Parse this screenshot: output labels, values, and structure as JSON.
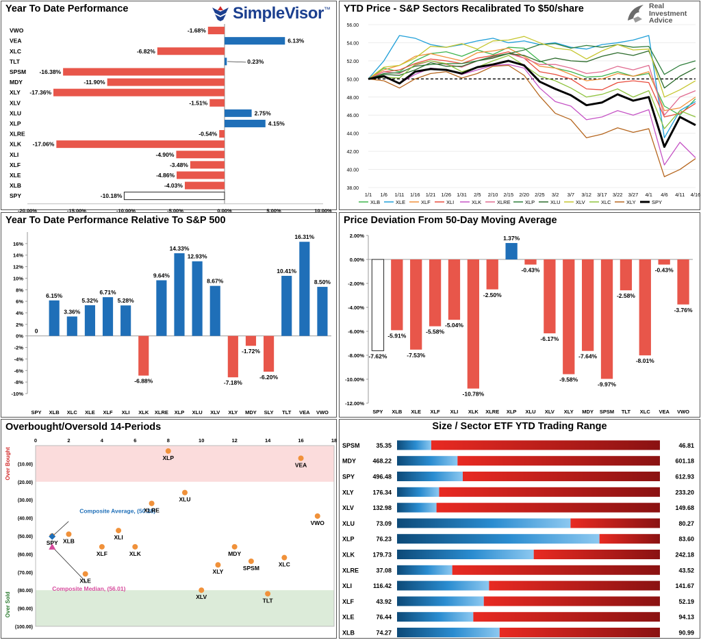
{
  "colors": {
    "red": "#e8564a",
    "blue": "#1f6fb8",
    "orange": "#f0913a",
    "pinkDot": "#d64a9c",
    "composite": "#1f6fb8",
    "overbought_band": "#fbdcdc",
    "oversold_band": "#dcebd9"
  },
  "branding": {
    "simplevisor": "SimpleVisor",
    "simplevisor_tm": "™",
    "ria_line1": "Real",
    "ria_line2": "Investment",
    "ria_line3": "Advice"
  },
  "panels": {
    "ytd": {
      "title": "Year To Date Performance",
      "chart_data": {
        "type": "bar",
        "orientation": "horizontal",
        "categories": [
          "VWO",
          "VEA",
          "XLC",
          "TLT",
          "SPSM",
          "MDY",
          "XLY",
          "XLV",
          "XLU",
          "XLP",
          "XLRE",
          "XLK",
          "XLI",
          "XLF",
          "XLE",
          "XLB",
          "SPY"
        ],
        "values": [
          -1.68,
          6.13,
          -6.82,
          0.23,
          -16.38,
          -11.9,
          -17.36,
          -1.51,
          2.75,
          4.15,
          -0.54,
          -17.06,
          -4.9,
          -3.48,
          -4.86,
          -4.03,
          -10.18
        ],
        "labels": [
          "-1.68%",
          "6.13%",
          "-6.82%",
          "0.23%",
          "-16.38%",
          "-11.90%",
          "-17.36%",
          "-1.51%",
          "2.75%",
          "4.15%",
          "-0.54%",
          "-17.06%",
          "-4.90%",
          "-3.48%",
          "-4.86%",
          "-4.03%",
          "-10.18%"
        ],
        "highlight": "SPY",
        "xlim": [
          -20,
          10
        ],
        "xticks": [
          -20,
          -15,
          -10,
          -5,
          0,
          5,
          10
        ],
        "xticklabels": [
          "-20.00%",
          "-15.00%",
          "-10.00%",
          "-5.00%",
          "0.00%",
          "5.00%",
          "10.00%"
        ]
      }
    },
    "price": {
      "title": "YTD Price - S&P Sectors Recalibrated To $50/share",
      "chart_data": {
        "type": "line",
        "x": [
          "1/1",
          "1/6",
          "1/11",
          "1/16",
          "1/21",
          "1/26",
          "1/31",
          "2/5",
          "2/10",
          "2/15",
          "2/20",
          "2/25",
          "3/2",
          "3/7",
          "3/12",
          "3/17",
          "3/22",
          "3/27",
          "4/1",
          "4/6",
          "4/11",
          "4/16"
        ],
        "ylim": [
          38,
          56
        ],
        "yticks": [
          38,
          40,
          42,
          44,
          46,
          48,
          50,
          52,
          54,
          56
        ],
        "yticklabels": [
          "38.00",
          "40.00",
          "42.00",
          "44.00",
          "46.00",
          "48.00",
          "50.00",
          "52.00",
          "54.00",
          "56.00"
        ],
        "reference_line": 50,
        "series": [
          {
            "name": "XLB",
            "color": "#3cb44b",
            "values": [
              50,
              51.2,
              50.8,
              52.0,
              52.8,
              53.0,
              52.5,
              53.2,
              52.7,
              53.5,
              53.4,
              52.0,
              51.2,
              50.8,
              50.2,
              50.3,
              50.8,
              50.3,
              50.6,
              47.0,
              46.0,
              47.8
            ]
          },
          {
            "name": "XLE",
            "color": "#1f9fd8",
            "values": [
              50,
              52.0,
              54.8,
              54.5,
              53.8,
              53.5,
              53.8,
              54.2,
              54.5,
              54.0,
              54.2,
              53.8,
              54.0,
              53.5,
              53.3,
              53.8,
              54.0,
              54.3,
              54.8,
              43.5,
              46.5,
              47.5
            ]
          },
          {
            "name": "XLF",
            "color": "#f0913a",
            "values": [
              50,
              51.0,
              51.5,
              52.5,
              52.8,
              52.4,
              52.0,
              52.9,
              53.1,
              53.4,
              52.5,
              51.4,
              51.2,
              50.5,
              49.8,
              50.0,
              50.6,
              50.3,
              50.8,
              46.5,
              46.8,
              48.0
            ]
          },
          {
            "name": "XLI",
            "color": "#e84b3c",
            "values": [
              50,
              50.8,
              51.0,
              51.7,
              52.2,
              52.0,
              51.7,
              52.3,
              52.6,
              53.0,
              52.3,
              50.8,
              50.5,
              50.0,
              48.9,
              48.8,
              49.6,
              49.8,
              49.6,
              45.8,
              46.2,
              47.3
            ]
          },
          {
            "name": "XLK",
            "color": "#c553c5",
            "values": [
              50,
              50.2,
              49.5,
              50.5,
              51.2,
              51.0,
              50.5,
              51.0,
              51.5,
              51.6,
              51.2,
              49.0,
              47.5,
              47.0,
              45.5,
              45.8,
              46.5,
              46.0,
              46.6,
              40.5,
              43.0,
              41.3
            ]
          },
          {
            "name": "XLRE",
            "color": "#e06a8f",
            "values": [
              50,
              50.8,
              50.6,
              51.5,
              52.0,
              51.6,
              51.3,
              52.0,
              52.4,
              52.8,
              52.3,
              51.6,
              51.6,
              51.2,
              50.6,
              50.8,
              51.4,
              51.0,
              51.5,
              46.0,
              48.0,
              48.7
            ]
          },
          {
            "name": "XLP",
            "color": "#2e7d3a",
            "values": [
              50,
              50.6,
              50.7,
              51.4,
              51.6,
              51.7,
              51.7,
              52.0,
              52.5,
              52.8,
              53.2,
              53.8,
              53.9,
              53.4,
              53.7,
              53.5,
              53.8,
              53.5,
              53.6,
              50.5,
              51.5,
              52.0
            ]
          },
          {
            "name": "XLU",
            "color": "#2a6a2a",
            "values": [
              50,
              50.5,
              50.4,
              51.0,
              51.8,
              51.4,
              51.4,
              52.0,
              52.3,
              52.8,
              52.6,
              51.9,
              52.3,
              52.0,
              51.9,
              52.5,
              52.9,
              52.6,
              53.1,
              49.0,
              50.3,
              51.2
            ]
          },
          {
            "name": "XLV",
            "color": "#c6c62f",
            "values": [
              50,
              51.3,
              51.5,
              52.3,
              53.6,
              53.5,
              53.9,
              53.3,
              54.2,
              54.3,
              54.7,
              54.0,
              53.4,
              53.2,
              52.2,
              53.1,
              53.8,
              53.2,
              53.3,
              48.0,
              48.8,
              49.8
            ]
          },
          {
            "name": "XLC",
            "color": "#8fc33e",
            "values": [
              50,
              50.2,
              50.1,
              51.6,
              52.0,
              51.7,
              50.8,
              51.3,
              52.0,
              52.6,
              51.5,
              50.3,
              49.8,
              49.0,
              48.0,
              48.3,
              48.9,
              48.0,
              48.7,
              44.5,
              46.5,
              45.8
            ]
          },
          {
            "name": "XLY",
            "color": "#b5651d",
            "values": [
              50,
              49.8,
              49.0,
              50.0,
              50.6,
              50.8,
              50.1,
              50.6,
              51.4,
              51.5,
              50.4,
              48.1,
              46.2,
              45.5,
              43.5,
              43.9,
              44.6,
              44.1,
              44.5,
              39.2,
              40.0,
              41.2
            ]
          },
          {
            "name": "SPY",
            "color": "#000000",
            "values": [
              50,
              50.3,
              49.5,
              50.8,
              51.1,
              51.0,
              50.6,
              51.3,
              51.6,
              52.0,
              51.5,
              49.7,
              48.9,
              48.2,
              47.1,
              47.4,
              48.3,
              47.6,
              48.0,
              42.5,
              45.8,
              44.9
            ]
          }
        ]
      }
    },
    "relative": {
      "title": "Year To Date Performance Relative To S&P 500",
      "chart_data": {
        "type": "bar",
        "categories": [
          "SPY",
          "XLB",
          "XLC",
          "XLE",
          "XLF",
          "XLI",
          "XLK",
          "XLRE",
          "XLP",
          "XLU",
          "XLV",
          "XLY",
          "MDY",
          "SLY",
          "TLT",
          "VEA",
          "VWO"
        ],
        "values": [
          0,
          6.15,
          3.36,
          5.32,
          6.71,
          5.28,
          -6.88,
          9.64,
          14.33,
          12.93,
          8.67,
          -7.18,
          -1.72,
          -6.2,
          10.41,
          16.31,
          8.5
        ],
        "labels": [
          "0",
          "6.15%",
          "3.36%",
          "5.32%",
          "6.71%",
          "5.28%",
          "-6.88%",
          "9.64%",
          "14.33%",
          "12.93%",
          "8.67%",
          "-7.18%",
          "-1.72%",
          "-6.20%",
          "10.41%",
          "16.31%",
          "8.50%"
        ],
        "ylim": [
          -10,
          18
        ],
        "yticks": [
          -10,
          -8,
          -6,
          -4,
          -2,
          0,
          2,
          4,
          6,
          8,
          10,
          12,
          14,
          16
        ],
        "yticklabels": [
          "-10%",
          "-8%",
          "-6%",
          "-4%",
          "-2%",
          "0%",
          "2%",
          "4%",
          "6%",
          "8%",
          "10%",
          "12%",
          "14%",
          "16%"
        ]
      }
    },
    "deviation": {
      "title": "Price Deviation From 50-Day Moving Average",
      "chart_data": {
        "type": "bar",
        "categories": [
          "SPY",
          "XLB",
          "XLE",
          "XLF",
          "XLI",
          "XLK",
          "XLRE",
          "XLP",
          "XLU",
          "XLV",
          "XLY",
          "MDY",
          "SPSM",
          "TLT",
          "XLC",
          "VEA",
          "VWO"
        ],
        "values": [
          -7.62,
          -5.91,
          -7.53,
          -5.58,
          -5.04,
          -10.78,
          -2.5,
          1.37,
          -0.43,
          -6.17,
          -9.58,
          -7.64,
          -9.97,
          -2.58,
          -8.01,
          -0.43,
          -3.76
        ],
        "labels": [
          "-7.62%",
          "-5.91%",
          "-7.53%",
          "-5.58%",
          "-5.04%",
          "-10.78%",
          "-2.50%",
          "1.37%",
          "-0.43%",
          "-6.17%",
          "-9.58%",
          "-7.64%",
          "-9.97%",
          "-2.58%",
          "-8.01%",
          "-0.43%",
          "-3.76%"
        ],
        "highlight": "SPY",
        "ylim": [
          -12,
          2
        ],
        "yticks": [
          -12,
          -10,
          -8,
          -6,
          -4,
          -2,
          0,
          2
        ],
        "yticklabels": [
          "-12.00%",
          "-10.00%",
          "-8.00%",
          "-6.00%",
          "-4.00%",
          "-2.00%",
          "0.00%",
          "2.00%"
        ]
      }
    },
    "obos": {
      "title": "Overbought/Oversold 14-Periods",
      "overbought_label": "Over Bought",
      "oversold_label": "Over Sold",
      "composite_avg_label": "Composite Average,  (50.28)",
      "composite_median_label": "Composite Median, (56.01)",
      "chart_data": {
        "type": "scatter",
        "xlim": [
          0,
          18
        ],
        "xticks": [
          0,
          2,
          4,
          6,
          8,
          10,
          12,
          14,
          16,
          18
        ],
        "ylim": [
          0,
          100
        ],
        "yticks": [
          10,
          20,
          30,
          40,
          50,
          60,
          70,
          80,
          90,
          100
        ],
        "yticklabels": [
          "(10.00)",
          "(20.00)",
          "(30.00)",
          "(40.00)",
          "(50.00)",
          "(60.00)",
          "(70.00)",
          "(80.00)",
          "(90.00)",
          "(100.00)"
        ],
        "overbought_above": 80,
        "oversold_below": 20,
        "points": [
          {
            "label": "XLP",
            "x": 8,
            "y": 3
          },
          {
            "label": "VEA",
            "x": 16,
            "y": 7
          },
          {
            "label": "XLU",
            "x": 9,
            "y": 26
          },
          {
            "label": "XLRE",
            "x": 7,
            "y": 32
          },
          {
            "label": "VWO",
            "x": 17,
            "y": 39
          },
          {
            "label": "SPY",
            "x": 1,
            "y": 50
          },
          {
            "label": "XLB",
            "x": 2,
            "y": 49
          },
          {
            "label": "XLI",
            "x": 5,
            "y": 47
          },
          {
            "label": "XLF",
            "x": 4,
            "y": 56
          },
          {
            "label": "XLK",
            "x": 6,
            "y": 56
          },
          {
            "label": "MDY",
            "x": 12,
            "y": 56
          },
          {
            "label": "SPSM",
            "x": 13,
            "y": 64
          },
          {
            "label": "XLC",
            "x": 15,
            "y": 62
          },
          {
            "label": "XLY",
            "x": 11,
            "y": 66
          },
          {
            "label": "XLE",
            "x": 3,
            "y": 71
          },
          {
            "label": "XLV",
            "x": 10,
            "y": 80
          },
          {
            "label": "TLT",
            "x": 14,
            "y": 82
          }
        ],
        "composite_average": {
          "x": 1,
          "y": 50.28
        },
        "composite_median": {
          "x": 1,
          "y": 56.01
        }
      }
    },
    "range": {
      "title": "Size / Sector ETF YTD Trading Range",
      "chart_data": {
        "type": "table",
        "rows": [
          {
            "ticker": "SPSM",
            "low": "35.35",
            "high": "46.81",
            "position": 0.13
          },
          {
            "ticker": "MDY",
            "low": "468.22",
            "high": "601.18",
            "position": 0.23
          },
          {
            "ticker": "SPY",
            "low": "496.48",
            "high": "612.93",
            "position": 0.25
          },
          {
            "ticker": "XLY",
            "low": "176.34",
            "high": "233.20",
            "position": 0.16
          },
          {
            "ticker": "XLV",
            "low": "132.98",
            "high": "149.68",
            "position": 0.15
          },
          {
            "ticker": "XLU",
            "low": "73.09",
            "high": "80.27",
            "position": 0.66
          },
          {
            "ticker": "XLP",
            "low": "76.23",
            "high": "83.60",
            "position": 0.77
          },
          {
            "ticker": "XLK",
            "low": "179.73",
            "high": "242.18",
            "position": 0.52
          },
          {
            "ticker": "XLRE",
            "low": "37.08",
            "high": "43.52",
            "position": 0.21
          },
          {
            "ticker": "XLI",
            "low": "116.42",
            "high": "141.67",
            "position": 0.35
          },
          {
            "ticker": "XLF",
            "low": "43.92",
            "high": "52.19",
            "position": 0.33
          },
          {
            "ticker": "XLE",
            "low": "76.44",
            "high": "94.13",
            "position": 0.29
          },
          {
            "ticker": "XLB",
            "low": "74.27",
            "high": "90.99",
            "position": 0.39
          }
        ]
      }
    }
  }
}
